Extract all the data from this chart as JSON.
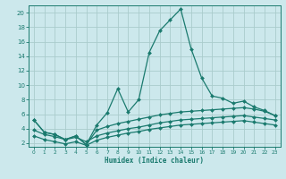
{
  "xlabel": "Humidex (Indice chaleur)",
  "bg_color": "#cce8ec",
  "grid_color": "#aacccc",
  "line_color": "#1a7a6e",
  "xlim": [
    -0.5,
    23.5
  ],
  "ylim": [
    1.5,
    21.0
  ],
  "yticks": [
    2,
    4,
    6,
    8,
    10,
    12,
    14,
    16,
    18,
    20
  ],
  "xticks": [
    0,
    1,
    2,
    3,
    4,
    5,
    6,
    7,
    8,
    9,
    10,
    11,
    12,
    13,
    14,
    15,
    16,
    17,
    18,
    19,
    20,
    21,
    22,
    23
  ],
  "series": [
    {
      "x": [
        0,
        1,
        2,
        3,
        4,
        5,
        6,
        7,
        8,
        9,
        10,
        11,
        12,
        13,
        14,
        15,
        16,
        17,
        18,
        19,
        20,
        21,
        22,
        23
      ],
      "y": [
        5.2,
        3.5,
        3.2,
        2.5,
        3.0,
        1.8,
        4.5,
        6.2,
        9.5,
        6.3,
        8.0,
        14.5,
        17.5,
        19.0,
        20.5,
        15.0,
        11.0,
        8.5,
        8.2,
        7.5,
        7.8,
        7.0,
        6.5,
        5.8
      ]
    },
    {
      "x": [
        0,
        1,
        2,
        3,
        4,
        5,
        6,
        7,
        8,
        9,
        10,
        11,
        12,
        13,
        14,
        15,
        16,
        17,
        18,
        19,
        20,
        21,
        22,
        23
      ],
      "y": [
        5.2,
        3.5,
        3.2,
        2.5,
        3.0,
        1.8,
        3.8,
        4.3,
        4.7,
        5.0,
        5.3,
        5.6,
        5.9,
        6.1,
        6.3,
        6.4,
        6.5,
        6.6,
        6.7,
        6.8,
        6.9,
        6.7,
        6.4,
        5.8
      ]
    },
    {
      "x": [
        0,
        1,
        2,
        3,
        4,
        5,
        6,
        7,
        8,
        9,
        10,
        11,
        12,
        13,
        14,
        15,
        16,
        17,
        18,
        19,
        20,
        21,
        22,
        23
      ],
      "y": [
        3.8,
        3.2,
        2.9,
        2.5,
        2.8,
        2.2,
        3.0,
        3.4,
        3.7,
        4.0,
        4.2,
        4.5,
        4.8,
        5.0,
        5.2,
        5.3,
        5.4,
        5.5,
        5.6,
        5.7,
        5.8,
        5.6,
        5.4,
        5.2
      ]
    },
    {
      "x": [
        0,
        1,
        2,
        3,
        4,
        5,
        6,
        7,
        8,
        9,
        10,
        11,
        12,
        13,
        14,
        15,
        16,
        17,
        18,
        19,
        20,
        21,
        22,
        23
      ],
      "y": [
        3.0,
        2.5,
        2.2,
        1.9,
        2.2,
        1.7,
        2.4,
        2.8,
        3.1,
        3.4,
        3.6,
        3.9,
        4.1,
        4.3,
        4.5,
        4.6,
        4.7,
        4.8,
        4.9,
        5.0,
        5.1,
        4.9,
        4.7,
        4.5
      ]
    }
  ]
}
